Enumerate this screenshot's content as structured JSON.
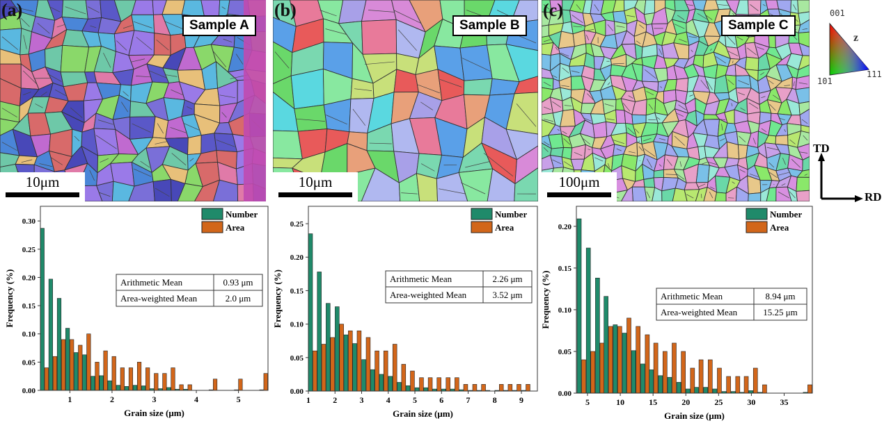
{
  "maps": [
    {
      "letter": "(a)",
      "sample": "Sample A",
      "scale": "10μm"
    },
    {
      "letter": "(b)",
      "sample": "Sample B",
      "scale": "10μm"
    },
    {
      "letter": "(c)",
      "sample": "Sample C",
      "scale": "100μm"
    }
  ],
  "ipf_legend": {
    "top": "001",
    "left": "101",
    "right": "111",
    "axis": "z"
  },
  "axes_legend": {
    "vertical": "TD",
    "horizontal": "RD"
  },
  "colors": {
    "number": "#1f8a6a",
    "area": "#d2661a"
  },
  "chart_data": [
    {
      "type": "bar",
      "xlabel": "Grain size (μm)",
      "ylabel": "Frequency (%)",
      "xlim": [
        0.3,
        5.7
      ],
      "ylim": [
        0,
        0.326
      ],
      "xticks": [
        1,
        2,
        3,
        4,
        5
      ],
      "yticks": [
        "0.00",
        "0.05",
        "0.10",
        "0.15",
        "0.20",
        "0.25",
        "0.30"
      ],
      "x": [
        0.4,
        0.6,
        0.8,
        1.0,
        1.2,
        1.4,
        1.6,
        1.8,
        2.0,
        2.2,
        2.4,
        2.6,
        2.8,
        3.0,
        3.2,
        3.4,
        3.6,
        3.8,
        4.0,
        4.2,
        4.4,
        4.6,
        4.8,
        5.0,
        5.2,
        5.4,
        5.6
      ],
      "series": [
        {
          "name": "Number",
          "values": [
            0.287,
            0.197,
            0.163,
            0.11,
            0.067,
            0.063,
            0.025,
            0.026,
            0.017,
            0.009,
            0.007,
            0.009,
            0.008,
            0.003,
            0.003,
            0.005,
            0.002,
            0.002,
            0,
            0,
            0.001,
            0,
            0,
            0.001,
            0,
            0,
            0.001
          ]
        },
        {
          "name": "Area",
          "values": [
            0.04,
            0.06,
            0.09,
            0.09,
            0.08,
            0.1,
            0.05,
            0.07,
            0.06,
            0.04,
            0.04,
            0.05,
            0.04,
            0.03,
            0.03,
            0.04,
            0.01,
            0.01,
            0,
            0,
            0.02,
            0,
            0,
            0.02,
            0,
            0,
            0.03
          ]
        }
      ],
      "table": [
        [
          "Arithmetic Mean",
          "0.93 μm"
        ],
        [
          "Area-weighted Mean",
          "2.0 μm"
        ]
      ],
      "legend": "top-right"
    },
    {
      "type": "bar",
      "xlabel": "Grain size (μm)",
      "ylabel": "Frequency (%)",
      "xlim": [
        1,
        9.6
      ],
      "ylim": [
        0,
        0.276
      ],
      "xticks": [
        1,
        2,
        3,
        4,
        5,
        6,
        7,
        8,
        9
      ],
      "yticks": [
        "0.00",
        "0.05",
        "0.10",
        "0.15",
        "0.20",
        "0.25"
      ],
      "x": [
        1.17,
        1.5,
        1.83,
        2.17,
        2.5,
        2.83,
        3.17,
        3.5,
        3.83,
        4.17,
        4.5,
        4.83,
        5.17,
        5.5,
        5.83,
        6.17,
        6.5,
        6.83,
        7.17,
        7.5,
        7.83,
        8.17,
        8.5,
        8.83,
        9.17
      ],
      "series": [
        {
          "name": "Number",
          "values": [
            0.235,
            0.178,
            0.131,
            0.126,
            0.084,
            0.071,
            0.047,
            0.032,
            0.025,
            0.022,
            0.013,
            0.008,
            0.005,
            0.005,
            0.003,
            0.003,
            0.003,
            0.002,
            0.001,
            0.001,
            0.001,
            0.001,
            0.001,
            0.001,
            0.001
          ]
        },
        {
          "name": "Area",
          "values": [
            0.06,
            0.07,
            0.08,
            0.1,
            0.09,
            0.09,
            0.08,
            0.06,
            0.06,
            0.07,
            0.04,
            0.03,
            0.02,
            0.02,
            0.02,
            0.02,
            0.02,
            0.01,
            0.01,
            0.01,
            0,
            0.01,
            0.01,
            0.01,
            0.01
          ]
        }
      ],
      "table": [
        [
          "Arithmetic Mean",
          "2.26 μm"
        ],
        [
          "Area-weighted Mean",
          "3.52 μm"
        ]
      ],
      "legend": "top-right"
    },
    {
      "type": "bar",
      "xlabel": "Grain size (μm)",
      "ylabel": "Frequency (%)",
      "xlim": [
        3.3,
        39.3
      ],
      "ylim": [
        0,
        0.224
      ],
      "xticks": [
        5,
        10,
        15,
        20,
        25,
        30,
        35
      ],
      "yticks": [
        "0.00",
        "0.05",
        "0.10",
        "0.15",
        "0.20"
      ],
      "x": [
        4.1,
        5.5,
        6.9,
        8.2,
        9.6,
        11.0,
        12.4,
        13.8,
        15.1,
        16.5,
        17.9,
        19.3,
        20.7,
        22.0,
        23.4,
        24.8,
        26.2,
        27.6,
        28.9,
        30.3,
        31.7,
        33.1,
        34.5,
        35.8,
        37.2,
        38.6
      ],
      "series": [
        {
          "name": "Number",
          "values": [
            0.209,
            0.174,
            0.138,
            0.116,
            0.082,
            0.072,
            0.051,
            0.035,
            0.028,
            0.021,
            0.019,
            0.013,
            0.005,
            0.007,
            0.007,
            0.005,
            0.002,
            0.002,
            0.001,
            0.003,
            0.001,
            0,
            0,
            0,
            0,
            0.001
          ]
        },
        {
          "name": "Area",
          "values": [
            0.04,
            0.05,
            0.06,
            0.08,
            0.08,
            0.09,
            0.08,
            0.07,
            0.06,
            0.05,
            0.06,
            0.05,
            0.03,
            0.04,
            0.04,
            0.03,
            0.02,
            0.02,
            0.02,
            0.03,
            0.01,
            0,
            0,
            0,
            0,
            0.01
          ]
        }
      ],
      "table": [
        [
          "Arithmetic Mean",
          "8.94 μm"
        ],
        [
          "Area-weighted Mean",
          "15.25 μm"
        ]
      ],
      "legend": "top-right"
    }
  ]
}
